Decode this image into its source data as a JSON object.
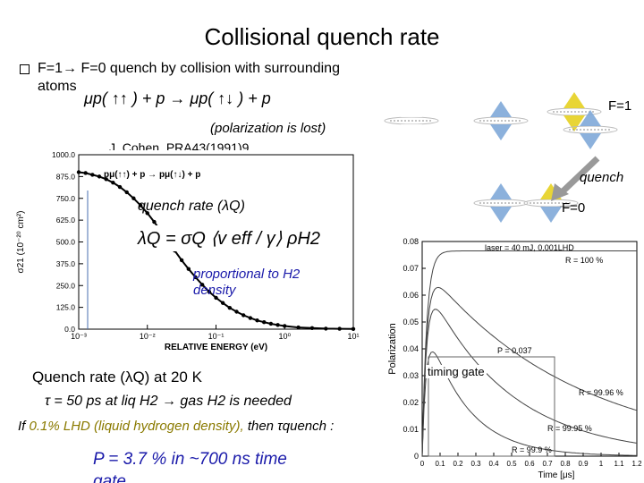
{
  "slide": {
    "title": "Collisional quench rate",
    "bullet_main": "F=1→ F=0 quench by collision with surrounding",
    "bullet_cont": "atoms",
    "reaction": "μp( ↑↑ ) + p → μp( ↑↓ ) + p",
    "polarization_lost": "(polarization is lost)",
    "citation": "J. Cohen, PRA43(1991)9",
    "f1_label": "F=1",
    "quench_label": "quench",
    "f0_label": "F=0",
    "quench_rate_lambda": "quench rate (λQ)",
    "proportional_line1": "proportional to H2",
    "proportional_line2": "density",
    "quench_rate_20k": "Quench rate (λQ) at 20 K",
    "tau_line": "τ = 50 ps at liq H2 → gas H2 is needed",
    "if_prefix": "If",
    "if_lhd": "0.1% LHD (liquid hydrogen density),",
    "if_then": "then τquench :",
    "p_line": "P = 3.7 % in ~700 ns time",
    "p_line2": "gate",
    "timing_gate": "timing gate",
    "formula": "λQ = σQ ⟨v eff / γ⟩ ρH2"
  },
  "colors": {
    "blue_text": "#1a1aaa",
    "olive_text": "#8a7a00",
    "arrow_gray": "#999999",
    "cone_yellow": "#e6d020",
    "cone_blue": "#7fa8d8"
  },
  "chart_left": {
    "type": "scatter",
    "reaction_label": "pμ(↑↑) + p → pμ(↑↓) + p",
    "ylabel": "σ21 (10⁻²⁰ cm²)",
    "xlabel": "RELATIVE ENERGY (eV)",
    "yticks": [
      "1000.0",
      "875.0",
      "750.0",
      "625.0",
      "500.0",
      "375.0",
      "250.0",
      "125.0",
      "0.0"
    ],
    "xticks": [
      "10⁻³",
      "10⁻²",
      "10⁻¹",
      "10⁰",
      "10¹"
    ],
    "ylim": [
      0,
      1000
    ],
    "xlog_range": [
      -3,
      1
    ],
    "points": [
      [
        -3.0,
        900
      ],
      [
        -2.9,
        895
      ],
      [
        -2.8,
        885
      ],
      [
        -2.7,
        875
      ],
      [
        -2.6,
        860
      ],
      [
        -2.5,
        840
      ],
      [
        -2.4,
        815
      ],
      [
        -2.3,
        785
      ],
      [
        -2.2,
        750
      ],
      [
        -2.1,
        710
      ],
      [
        -2.0,
        665
      ],
      [
        -1.9,
        615
      ],
      [
        -1.8,
        560
      ],
      [
        -1.7,
        505
      ],
      [
        -1.6,
        450
      ],
      [
        -1.5,
        395
      ],
      [
        -1.4,
        345
      ],
      [
        -1.3,
        298
      ],
      [
        -1.2,
        255
      ],
      [
        -1.1,
        215
      ],
      [
        -1.0,
        180
      ],
      [
        -0.9,
        150
      ],
      [
        -0.8,
        122
      ],
      [
        -0.7,
        100
      ],
      [
        -0.6,
        80
      ],
      [
        -0.5,
        64
      ],
      [
        -0.4,
        50
      ],
      [
        -0.3,
        40
      ],
      [
        -0.2,
        31
      ],
      [
        -0.1,
        24
      ],
      [
        0.0,
        18
      ],
      [
        0.2,
        10
      ],
      [
        0.4,
        6
      ],
      [
        0.6,
        3
      ],
      [
        0.8,
        2
      ],
      [
        1.0,
        1
      ]
    ]
  },
  "chart_right": {
    "type": "line",
    "header": "laser = 40 mJ, 0.001LHD",
    "ylabel": "Polarization",
    "xlabel": "Time [μs]",
    "yticks": [
      "0.08",
      "0.07",
      "0.06",
      "0.05",
      "0.04",
      "0.03",
      "0.02",
      "0.01",
      "0"
    ],
    "xticks": [
      "0",
      "0.1",
      "0.2",
      "0.3",
      "0.4",
      "0.5",
      "0.6",
      "0.7",
      "0.8",
      "0.9",
      "1",
      "1.1",
      "1.2"
    ],
    "ylim": [
      0,
      0.08
    ],
    "xlim": [
      0,
      1.2
    ],
    "p_annotation": "P = 0.037",
    "series": [
      {
        "name": "R = 100 %",
        "peak": 0.0765,
        "tail": 0.0,
        "decay": 0.0
      },
      {
        "name": "R = 99.96 %",
        "peak": 0.072,
        "tail": 0.0,
        "decay": 1.2
      },
      {
        "name": "R = 99.95 %",
        "peak": 0.068,
        "tail": 0.0,
        "decay": 2.2
      },
      {
        "name": "R = 99.9 %",
        "peak": 0.056,
        "tail": 0.0,
        "decay": 4.5
      }
    ]
  }
}
